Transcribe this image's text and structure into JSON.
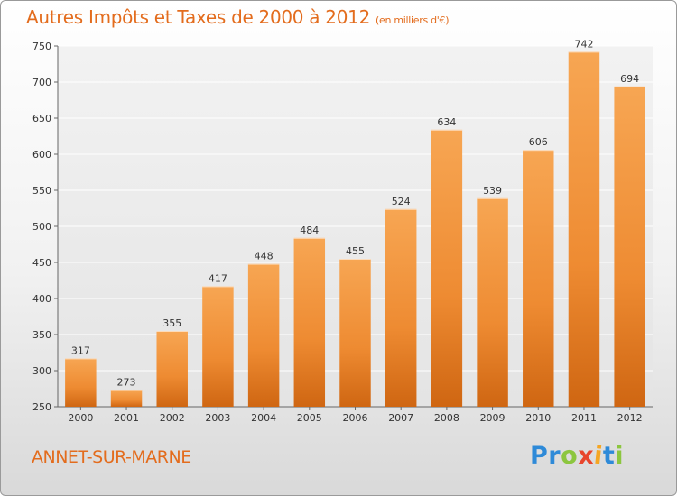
{
  "chart_data": {
    "type": "bar",
    "title": "Autres Impôts et Taxes de 2000 à 2012",
    "subtitle": "(en milliers d'€)",
    "xlabel": "",
    "ylabel": "",
    "categories": [
      "2000",
      "2001",
      "2002",
      "2003",
      "2004",
      "2005",
      "2006",
      "2007",
      "2008",
      "2009",
      "2010",
      "2011",
      "2012"
    ],
    "values": [
      317,
      273,
      355,
      417,
      448,
      484,
      455,
      524,
      634,
      539,
      606,
      742,
      694
    ],
    "ylim": [
      250,
      750
    ],
    "yticks": [
      250,
      300,
      350,
      400,
      450,
      500,
      550,
      600,
      650,
      700,
      750
    ],
    "grid": true,
    "bar_color": "#f39c44"
  },
  "footer": {
    "commune": "ANNET-SUR-MARNE",
    "logo_letters": [
      {
        "ch": "P",
        "color": "#2e8ad8"
      },
      {
        "ch": "r",
        "color": "#2e8ad8"
      },
      {
        "ch": "o",
        "color": "#8cc63f"
      },
      {
        "ch": "x",
        "color": "#e8452c"
      },
      {
        "ch": "i",
        "color": "#f5a623"
      },
      {
        "ch": "t",
        "color": "#2e8ad8"
      },
      {
        "ch": "i",
        "color": "#8cc63f"
      }
    ]
  }
}
